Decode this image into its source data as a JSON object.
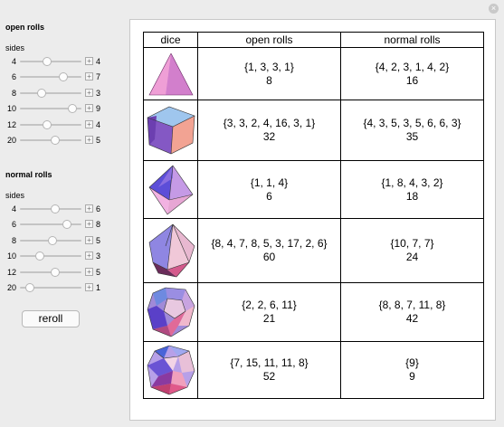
{
  "open_rolls": {
    "title": "open rolls",
    "sides_label": "sides",
    "sliders": [
      {
        "sides": "4",
        "value": "4",
        "level": 0.4
      },
      {
        "sides": "6",
        "value": "7",
        "level": 0.7
      },
      {
        "sides": "8",
        "value": "3",
        "level": 0.3
      },
      {
        "sides": "10",
        "value": "9",
        "level": 0.85
      },
      {
        "sides": "12",
        "value": "4",
        "level": 0.4
      },
      {
        "sides": "20",
        "value": "5",
        "level": 0.55
      }
    ]
  },
  "normal_rolls": {
    "title": "normal rolls",
    "sides_label": "sides",
    "sliders": [
      {
        "sides": "4",
        "value": "6",
        "level": 0.55
      },
      {
        "sides": "6",
        "value": "8",
        "level": 0.75
      },
      {
        "sides": "8",
        "value": "5",
        "level": 0.5
      },
      {
        "sides": "10",
        "value": "3",
        "level": 0.28
      },
      {
        "sides": "12",
        "value": "5",
        "level": 0.55
      },
      {
        "sides": "20",
        "value": "1",
        "level": 0.1
      }
    ]
  },
  "reroll_label": "reroll",
  "table": {
    "headers": [
      "dice",
      "open rolls",
      "normal rolls"
    ],
    "rows": [
      {
        "die_icon": "tetrahedron-icon",
        "open_list": "{1, 3, 3, 1}",
        "open_sum": "8",
        "normal_list": "{4, 2, 3, 1, 4, 2}",
        "normal_sum": "16"
      },
      {
        "die_icon": "cube-icon",
        "open_list": "{3, 3, 2, 4, 16, 3, 1}",
        "open_sum": "32",
        "normal_list": "{4, 3, 5, 3, 5, 6, 6, 3}",
        "normal_sum": "35"
      },
      {
        "die_icon": "octahedron-icon",
        "open_list": "{1, 1, 4}",
        "open_sum": "6",
        "normal_list": "{1, 8, 4, 3, 2}",
        "normal_sum": "18"
      },
      {
        "die_icon": "trapezohedron-icon",
        "open_list": "{8, 4, 7, 8, 5, 3, 17, 2, 6}",
        "open_sum": "60",
        "normal_list": "{10, 7, 7}",
        "normal_sum": "24"
      },
      {
        "die_icon": "dodecahedron-icon",
        "open_list": "{2, 2, 6, 11}",
        "open_sum": "21",
        "normal_list": "{8, 8, 7, 11, 8}",
        "normal_sum": "42"
      },
      {
        "die_icon": "icosahedron-icon",
        "open_list": "{7, 15, 11, 11, 8}",
        "open_sum": "52",
        "normal_list": "{9}",
        "normal_sum": "9"
      }
    ]
  }
}
